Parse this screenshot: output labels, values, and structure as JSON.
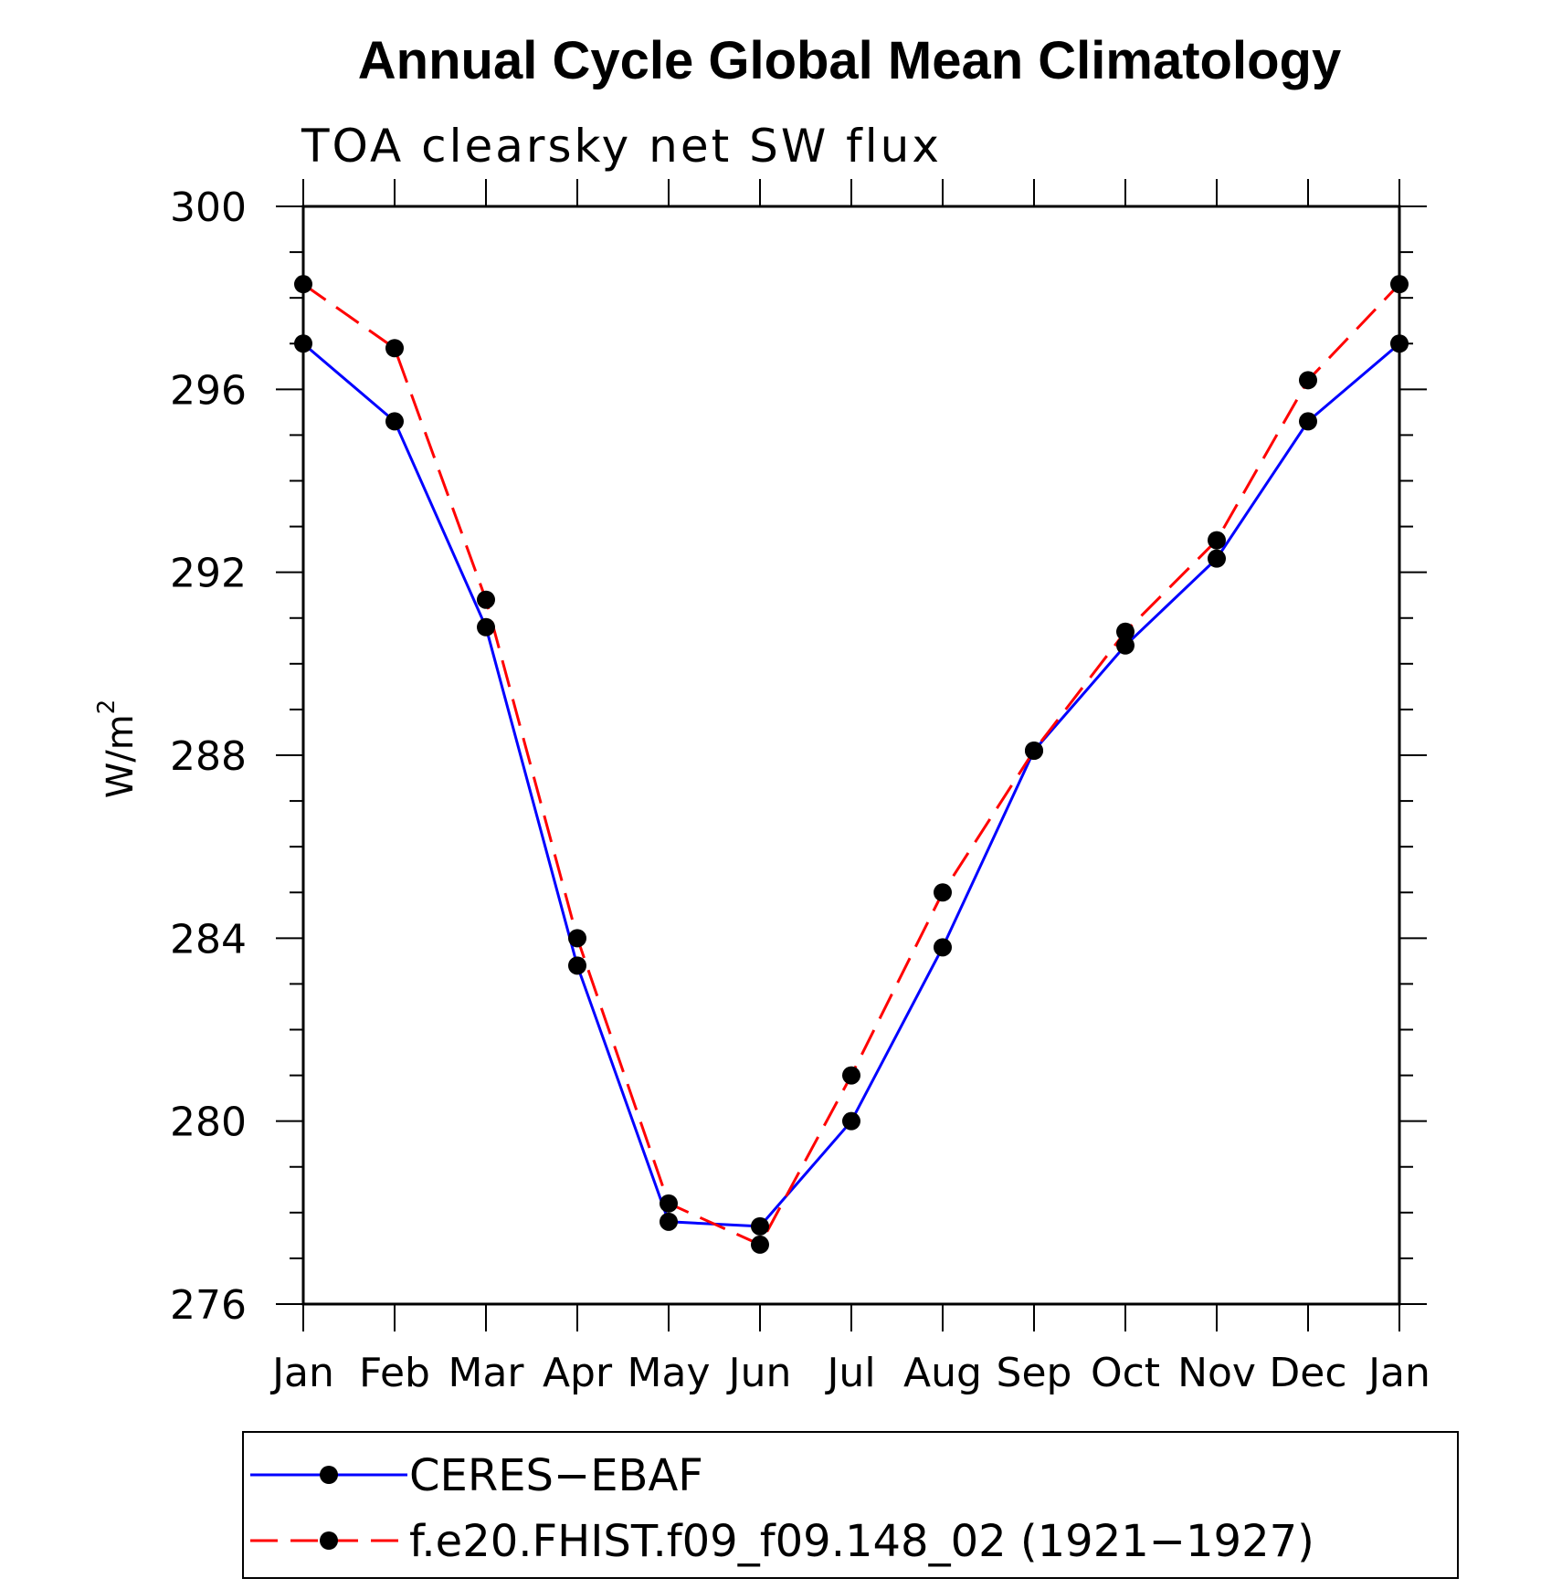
{
  "chart_data": {
    "type": "line",
    "title": "Annual Cycle Global Mean Climatology",
    "subtitle": "TOA clearsky net SW flux",
    "ylabel": "W/m",
    "ylabel_superscript": "2",
    "xlabel": "",
    "ylim": [
      276,
      300
    ],
    "yticks": [
      276,
      280,
      284,
      288,
      292,
      296,
      300
    ],
    "categories": [
      "Jan",
      "Feb",
      "Mar",
      "Apr",
      "May",
      "Jun",
      "Jul",
      "Aug",
      "Sep",
      "Oct",
      "Nov",
      "Dec",
      "Jan"
    ],
    "series": [
      {
        "name": "CERES−EBAF",
        "color": "#0000ff",
        "dash": "solid",
        "values": [
          297.0,
          295.3,
          290.8,
          283.4,
          277.8,
          277.7,
          280.0,
          283.8,
          288.1,
          290.4,
          292.3,
          295.3,
          297.0
        ]
      },
      {
        "name": "f.e20.FHIST.f09_f09.148_02 (1921−1927)",
        "color": "#ff0000",
        "dash": "dashed",
        "values": [
          298.3,
          296.9,
          291.4,
          284.0,
          278.2,
          277.3,
          281.0,
          285.0,
          288.1,
          290.7,
          292.7,
          296.2,
          298.3
        ]
      }
    ],
    "legend_position": "bottom"
  }
}
